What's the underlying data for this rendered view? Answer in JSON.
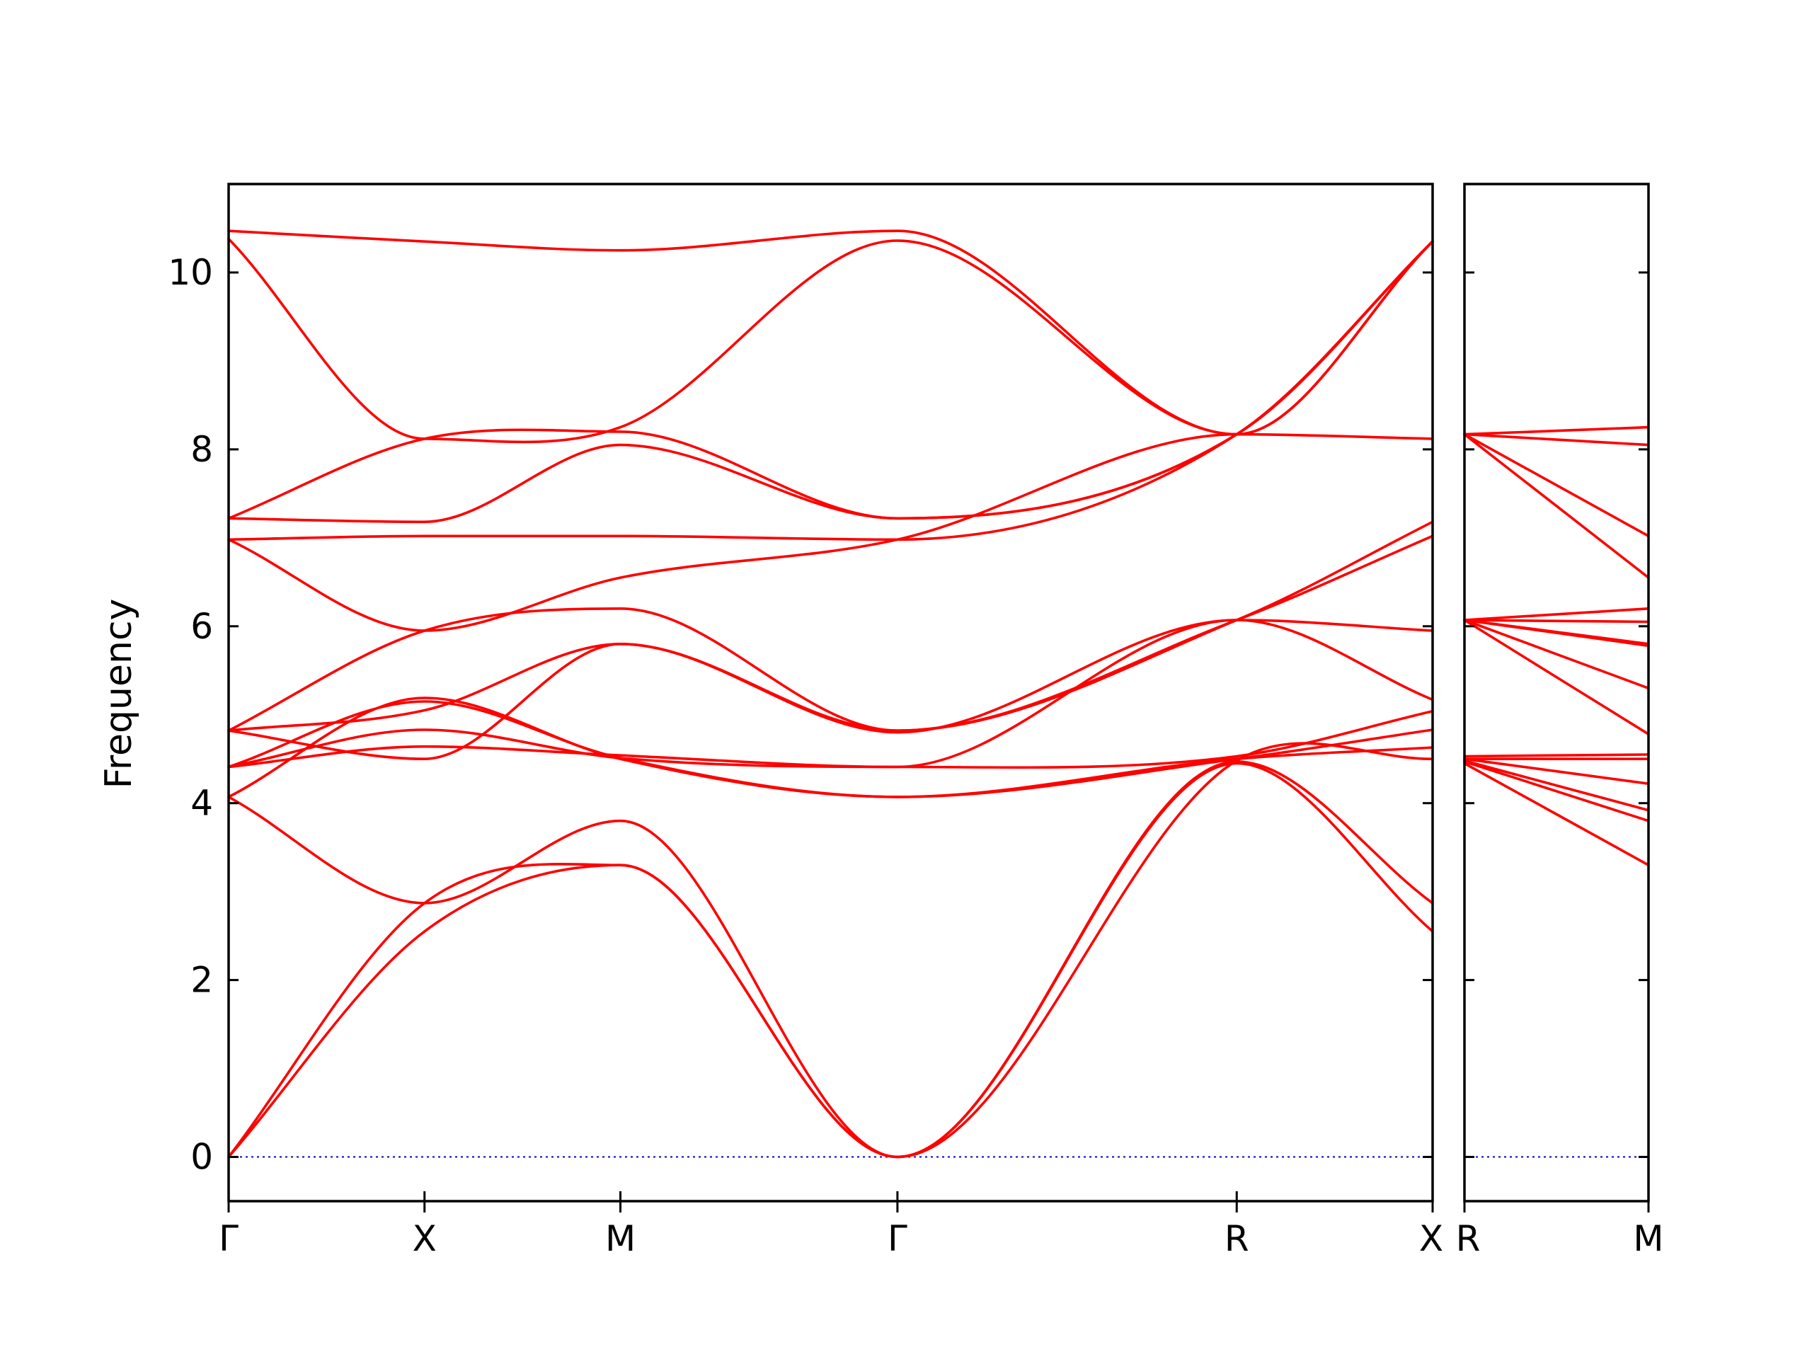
{
  "chart_data": {
    "type": "line",
    "title": "",
    "xlabel": "",
    "ylabel": "Frequency",
    "ylim": [
      -0.5,
      11.0
    ],
    "yticks": [
      0,
      2,
      4,
      6,
      8,
      10
    ],
    "grid": false,
    "colors": {
      "bands": "#ff0000",
      "zero_line": "#0000cc",
      "axes": "#000000"
    },
    "segments": [
      {
        "labels": [
          "Γ",
          "X",
          "M",
          "Γ",
          "R",
          "X"
        ],
        "x": [
          0,
          0.5,
          1.0,
          1.7071,
          2.5731,
          3.0731
        ],
        "bands": [
          [
            0,
            2.55,
            3.3,
            0,
            4.45,
            2.55
          ],
          [
            0,
            2.87,
            3.3,
            0,
            4.47,
            2.87
          ],
          [
            4.07,
            2.87,
            3.8,
            0,
            4.48,
            4.5
          ],
          [
            4.07,
            5.19,
            4.5,
            4.07,
            4.5,
            4.63
          ],
          [
            4.41,
            5.15,
            4.51,
            4.07,
            4.5,
            4.83
          ],
          [
            4.41,
            4.83,
            4.51,
            4.41,
            4.53,
            5.04
          ],
          [
            4.41,
            4.64,
            4.54,
            4.41,
            6.07,
            5.17
          ],
          [
            4.82,
            4.5,
            5.8,
            4.8,
            6.07,
            5.95
          ],
          [
            4.82,
            5.05,
            5.8,
            4.82,
            6.07,
            7.02
          ],
          [
            4.82,
            5.95,
            6.2,
            4.82,
            6.07,
            7.18
          ],
          [
            6.98,
            5.95,
            6.55,
            6.98,
            8.17,
            8.12
          ],
          [
            6.98,
            7.02,
            7.02,
            6.98,
            8.17,
            10.35
          ],
          [
            7.22,
            7.18,
            8.05,
            7.22,
            8.17,
            10.35
          ],
          [
            7.22,
            8.12,
            8.2,
            7.22,
            8.17,
            10.35
          ],
          [
            10.38,
            8.12,
            8.25,
            10.36,
            8.17,
            10.35
          ],
          [
            10.47,
            10.35,
            10.25,
            10.47,
            8.17,
            10.35
          ]
        ]
      },
      {
        "labels": [
          "R",
          "M"
        ],
        "x": [
          0,
          0.7071
        ],
        "bands": [
          [
            4.45,
            3.3
          ],
          [
            4.47,
            3.8
          ],
          [
            4.48,
            3.92
          ],
          [
            4.5,
            4.22
          ],
          [
            4.5,
            4.5
          ],
          [
            4.53,
            4.55
          ],
          [
            6.07,
            4.78
          ],
          [
            6.07,
            5.3
          ],
          [
            6.07,
            5.78
          ],
          [
            6.07,
            5.8
          ],
          [
            6.07,
            6.05
          ],
          [
            6.07,
            6.2
          ],
          [
            8.17,
            6.55
          ],
          [
            8.17,
            7.02
          ],
          [
            8.17,
            8.05
          ],
          [
            8.17,
            8.25
          ]
        ]
      }
    ]
  }
}
